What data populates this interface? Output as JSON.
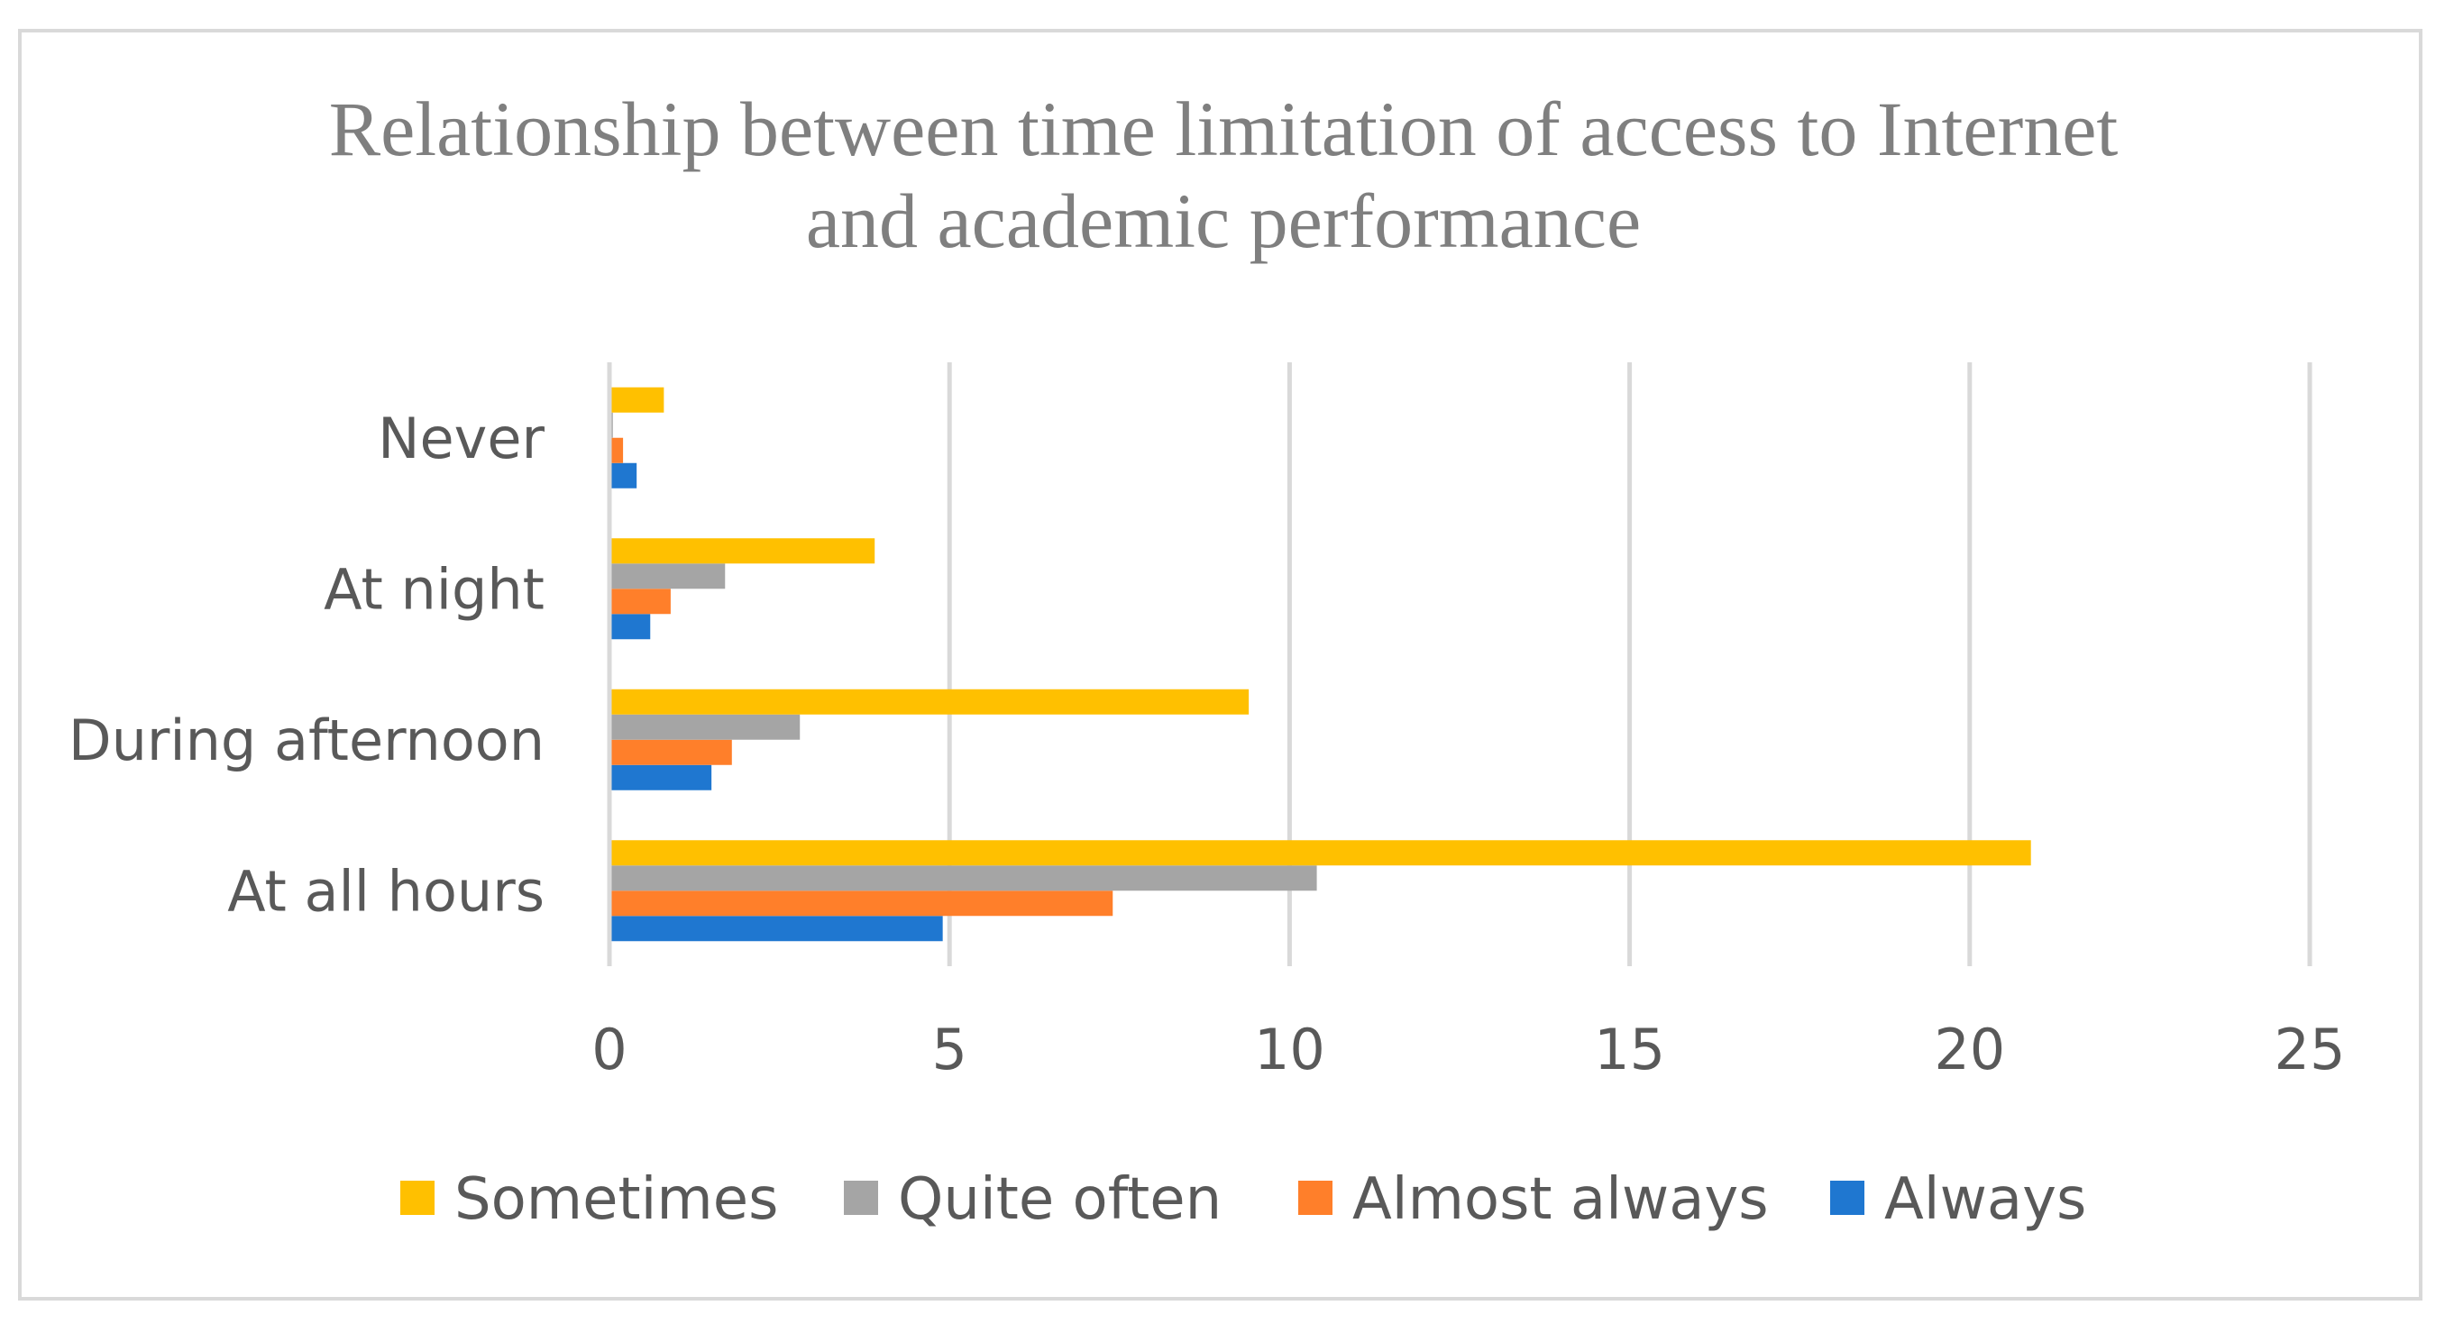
{
  "chart_data": {
    "type": "bar",
    "orientation": "horizontal",
    "title_lines": [
      "Relationship between time limitation of access to Internet",
      "and academic performance"
    ],
    "categories": [
      "At all hours",
      "During afternoon",
      "At night",
      "Never"
    ],
    "series": [
      {
        "name": "Always",
        "color": "#1f77d0",
        "values": [
          4.9,
          1.5,
          0.6,
          0.4
        ]
      },
      {
        "name": "Almost always",
        "color": "#ff7f2a",
        "values": [
          7.4,
          1.8,
          0.9,
          0.2
        ]
      },
      {
        "name": "Quite often",
        "color": "#a5a5a5",
        "values": [
          10.4,
          2.8,
          1.7,
          0.05
        ]
      },
      {
        "name": "Sometimes",
        "color": "#ffc000",
        "values": [
          20.9,
          9.4,
          3.9,
          0.8
        ]
      }
    ],
    "legend_order": [
      "Sometimes",
      "Quite often",
      "Almost always",
      "Always"
    ],
    "xlim": [
      0,
      25
    ],
    "xticks": [
      0,
      5,
      10,
      15,
      20,
      25
    ],
    "xtick_labels": [
      "0",
      "5",
      "10",
      "15",
      "20",
      "25"
    ],
    "grid": true,
    "legend_position": "bottom",
    "xlabel": "",
    "ylabel": ""
  }
}
